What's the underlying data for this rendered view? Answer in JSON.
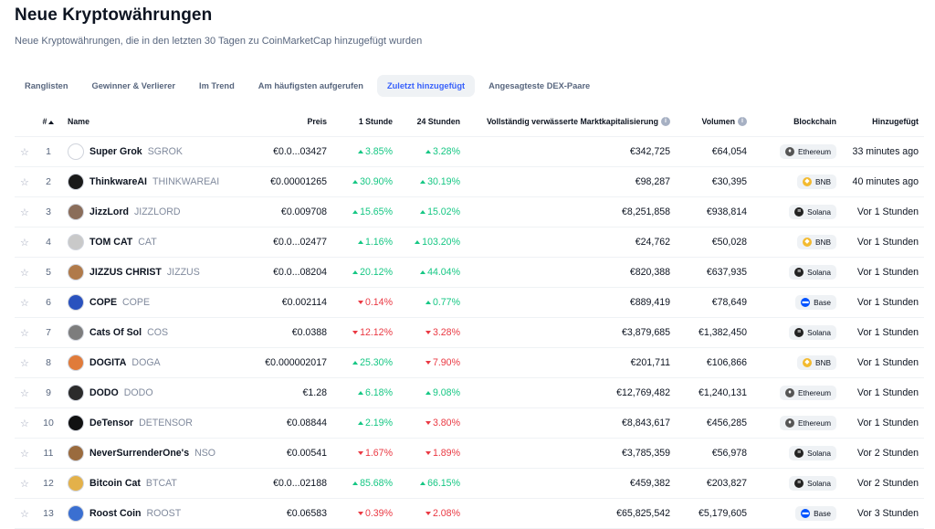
{
  "page": {
    "title": "Neue Kryptowährungen",
    "subtitle": "Neue Kryptowährungen, die in den letzten 30 Tagen zu CoinMarketCap hinzugefügt wurden"
  },
  "tabs": [
    {
      "label": "Ranglisten",
      "active": false
    },
    {
      "label": "Gewinner & Verlierer",
      "active": false
    },
    {
      "label": "Im Trend",
      "active": false
    },
    {
      "label": "Am häufigsten aufgerufen",
      "active": false
    },
    {
      "label": "Zuletzt hinzugefügt",
      "active": true
    },
    {
      "label": "Angesagteste DEX-Paare",
      "active": false
    }
  ],
  "table": {
    "headers": {
      "rank": "#",
      "name": "Name",
      "price": "Preis",
      "h1": "1 Stunde",
      "h24": "24 Stunden",
      "fdv": "Vollständig verwässerte Marktkapitalisierung",
      "volume": "Volumen",
      "blockchain": "Blockchain",
      "added": "Hinzugefügt"
    },
    "rows": [
      {
        "rank": "1",
        "name": "Super Grok",
        "symbol": "SGROK",
        "price": "€0.0...03427",
        "h1": "3.85%",
        "h1_dir": "up",
        "h24": "3.28%",
        "h24_dir": "up",
        "fdv": "€342,725",
        "volume": "€64,054",
        "chain": "Ethereum",
        "added": "33 minutes ago",
        "logo_color": "#ffffff"
      },
      {
        "rank": "2",
        "name": "ThinkwareAI",
        "symbol": "THINKWAREAI",
        "price": "€0.00001265",
        "h1": "30.90%",
        "h1_dir": "up",
        "h24": "30.19%",
        "h24_dir": "up",
        "fdv": "€98,287",
        "volume": "€30,395",
        "chain": "BNB",
        "added": "40 minutes ago",
        "logo_color": "#1a1a1a"
      },
      {
        "rank": "3",
        "name": "JizzLord",
        "symbol": "JIZZLORD",
        "price": "€0.009708",
        "h1": "15.65%",
        "h1_dir": "up",
        "h24": "15.02%",
        "h24_dir": "up",
        "fdv": "€8,251,858",
        "volume": "€938,814",
        "chain": "Solana",
        "added": "Vor 1 Stunden",
        "logo_color": "#8a6d5a"
      },
      {
        "rank": "4",
        "name": "TOM CAT",
        "symbol": "CAT",
        "price": "€0.0...02477",
        "h1": "1.16%",
        "h1_dir": "up",
        "h24": "103.20%",
        "h24_dir": "up",
        "fdv": "€24,762",
        "volume": "€50,028",
        "chain": "BNB",
        "added": "Vor 1 Stunden",
        "logo_color": "#c9c9c9"
      },
      {
        "rank": "5",
        "name": "JIZZUS CHRIST",
        "symbol": "JIZZUS",
        "price": "€0.0...08204",
        "h1": "20.12%",
        "h1_dir": "up",
        "h24": "44.04%",
        "h24_dir": "up",
        "fdv": "€820,388",
        "volume": "€637,935",
        "chain": "Solana",
        "added": "Vor 1 Stunden",
        "logo_color": "#b07a4a"
      },
      {
        "rank": "6",
        "name": "COPE",
        "symbol": "COPE",
        "price": "€0.002114",
        "h1": "0.14%",
        "h1_dir": "down",
        "h24": "0.77%",
        "h24_dir": "up",
        "fdv": "€889,419",
        "volume": "€78,649",
        "chain": "Base",
        "added": "Vor 1 Stunden",
        "logo_color": "#2a52be"
      },
      {
        "rank": "7",
        "name": "Cats Of Sol",
        "symbol": "COS",
        "price": "€0.0388",
        "h1": "12.12%",
        "h1_dir": "down",
        "h24": "3.28%",
        "h24_dir": "down",
        "fdv": "€3,879,685",
        "volume": "€1,382,450",
        "chain": "Solana",
        "added": "Vor 1 Stunden",
        "logo_color": "#7d7d7d"
      },
      {
        "rank": "8",
        "name": "DOGITA",
        "symbol": "DOGA",
        "price": "€0.000002017",
        "h1": "25.30%",
        "h1_dir": "up",
        "h24": "7.90%",
        "h24_dir": "down",
        "fdv": "€201,711",
        "volume": "€106,866",
        "chain": "BNB",
        "added": "Vor 1 Stunden",
        "logo_color": "#e07b3a"
      },
      {
        "rank": "9",
        "name": "DODO",
        "symbol": "DODO",
        "price": "€1.28",
        "h1": "6.18%",
        "h1_dir": "up",
        "h24": "9.08%",
        "h24_dir": "up",
        "fdv": "€12,769,482",
        "volume": "€1,240,131",
        "chain": "Ethereum",
        "added": "Vor 1 Stunden",
        "logo_color": "#2b2b2b"
      },
      {
        "rank": "10",
        "name": "DeTensor",
        "symbol": "DETENSOR",
        "price": "€0.08844",
        "h1": "2.19%",
        "h1_dir": "up",
        "h24": "3.80%",
        "h24_dir": "down",
        "fdv": "€8,843,617",
        "volume": "€456,285",
        "chain": "Ethereum",
        "added": "Vor 1 Stunden",
        "logo_color": "#111111"
      },
      {
        "rank": "11",
        "name": "NeverSurrenderOne's",
        "symbol": "NSO",
        "price": "€0.00541",
        "h1": "1.67%",
        "h1_dir": "down",
        "h24": "1.89%",
        "h24_dir": "down",
        "fdv": "€3,785,359",
        "volume": "€56,978",
        "chain": "Solana",
        "added": "Vor 2 Stunden",
        "logo_color": "#9a6b3e"
      },
      {
        "rank": "12",
        "name": "Bitcoin Cat",
        "symbol": "BTCAT",
        "price": "€0.0...02188",
        "h1": "85.68%",
        "h1_dir": "up",
        "h24": "66.15%",
        "h24_dir": "up",
        "fdv": "€459,382",
        "volume": "€203,827",
        "chain": "Solana",
        "added": "Vor 2 Stunden",
        "logo_color": "#e3b14a"
      },
      {
        "rank": "13",
        "name": "Roost Coin",
        "symbol": "ROOST",
        "price": "€0.06583",
        "h1": "0.39%",
        "h1_dir": "down",
        "h24": "2.08%",
        "h24_dir": "down",
        "fdv": "€65,825,542",
        "volume": "€5,179,605",
        "chain": "Base",
        "added": "Vor 3 Stunden",
        "logo_color": "#3a6fd1"
      }
    ]
  },
  "chain_styles": {
    "Ethereum": {
      "icon": "ethereum-icon",
      "color": "#555555",
      "glyph": "♦"
    },
    "BNB": {
      "icon": "bnb-icon",
      "color": "#f3ba2f",
      "glyph": "◆"
    },
    "Solana": {
      "icon": "solana-icon",
      "color": "#222222",
      "glyph": "≡"
    },
    "Base": {
      "icon": "base-icon",
      "color": "#0052ff",
      "glyph": "▬"
    }
  },
  "colors": {
    "up": "#16c784",
    "down": "#ea3943",
    "accent": "#3861fb"
  }
}
